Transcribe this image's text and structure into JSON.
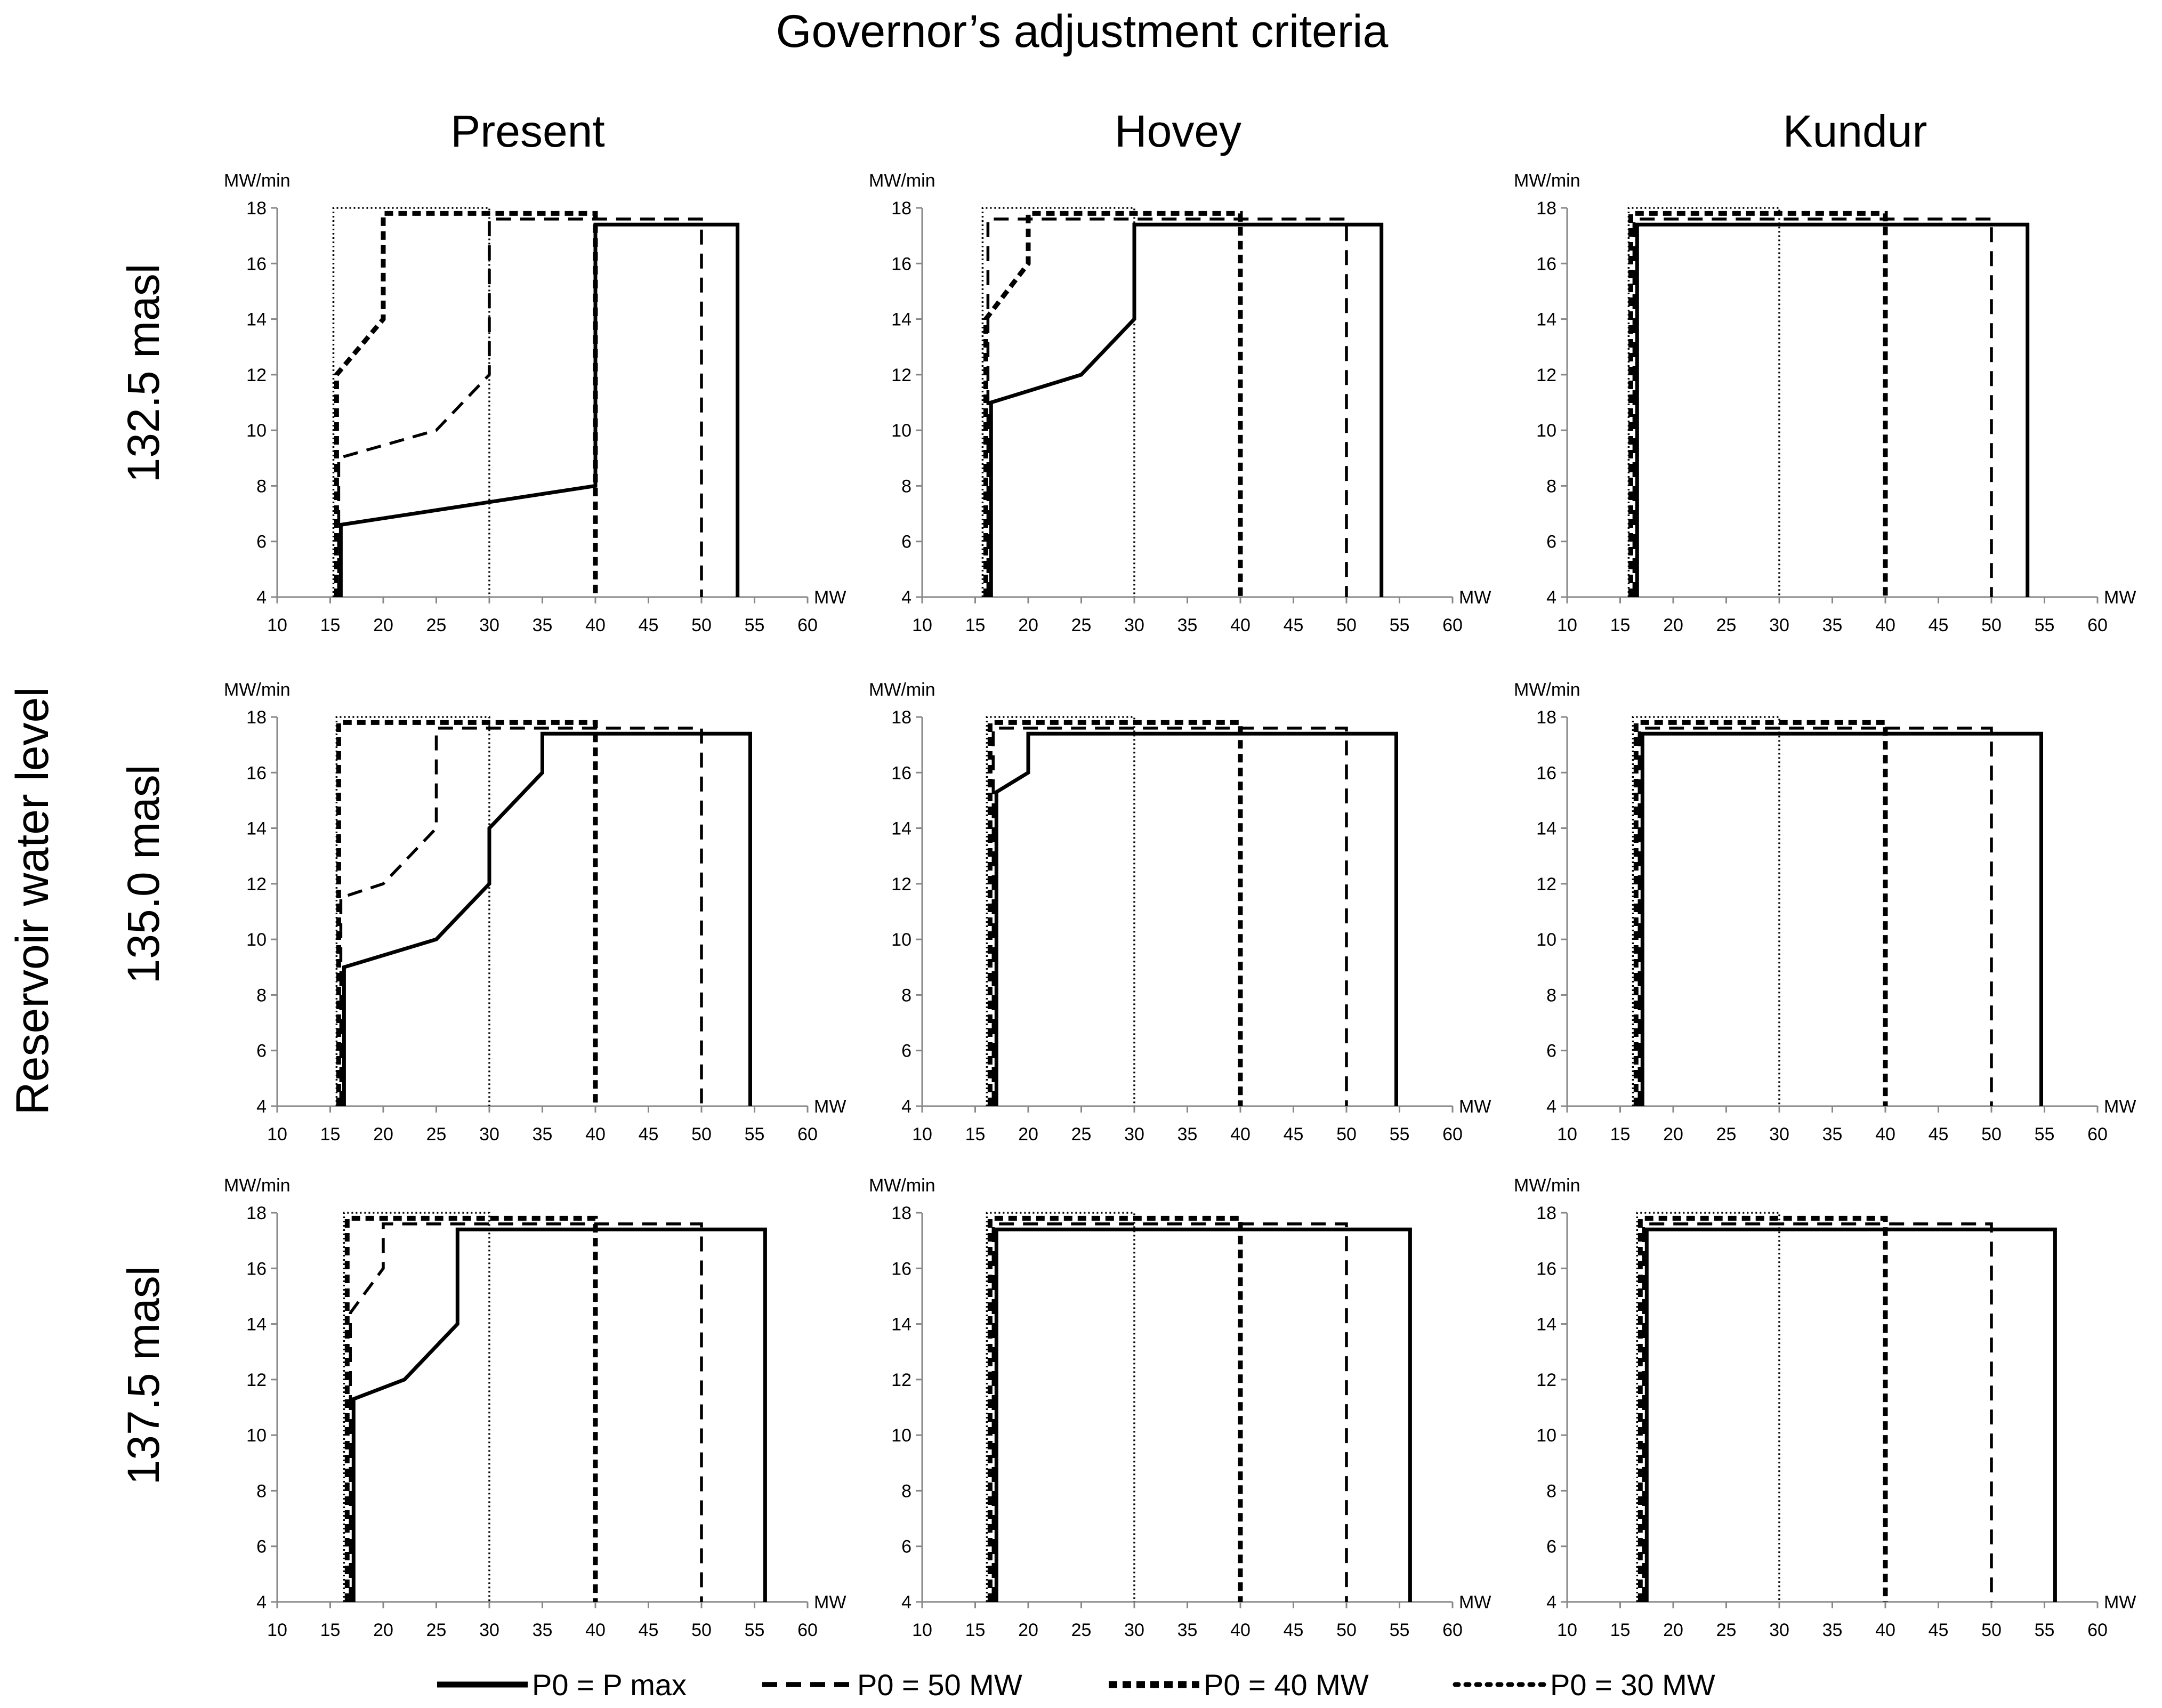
{
  "title": "Governor’s adjustment  criteria",
  "row_axis_title": "Reservoir water level",
  "columns": [
    "Present",
    "Hovey",
    "Kundur"
  ],
  "rows": [
    "132.5 masl",
    "135.0 masl",
    "137.5 masl"
  ],
  "legend": [
    {
      "key": "pmax",
      "label": "P0 = P max"
    },
    {
      "key": "p50",
      "label": "P0 = 50 MW"
    },
    {
      "key": "p40",
      "label": "P0 = 40 MW"
    },
    {
      "key": "p30",
      "label": "P0 = 30 MW"
    }
  ],
  "chart_data": [
    {
      "type": "line",
      "row": "132.5 masl",
      "column": "Present",
      "xlabel": "MW",
      "ylabel": "MW/min",
      "xlim": [
        10,
        60
      ],
      "ylim": [
        4,
        18
      ],
      "x_ticks": [
        10,
        15,
        20,
        25,
        30,
        35,
        40,
        45,
        50,
        55,
        60
      ],
      "y_ticks": [
        4,
        6,
        8,
        10,
        12,
        14,
        16,
        18
      ],
      "series": [
        {
          "name": "P0 = P max",
          "points": [
            [
              16,
              4
            ],
            [
              16,
              6.6
            ],
            [
              40,
              8
            ],
            [
              40,
              17.4
            ],
            [
              53.4,
              17.4
            ],
            [
              53.4,
              4
            ]
          ]
        },
        {
          "name": "P0 = 50 MW",
          "points": [
            [
              15.8,
              4
            ],
            [
              15.8,
              9
            ],
            [
              25,
              10
            ],
            [
              30,
              12
            ],
            [
              30,
              17.6
            ],
            [
              50,
              17.6
            ],
            [
              50,
              4
            ]
          ]
        },
        {
          "name": "P0 = 40 MW",
          "points": [
            [
              15.6,
              4
            ],
            [
              15.6,
              12
            ],
            [
              20,
              14
            ],
            [
              20,
              17.8
            ],
            [
              40,
              17.8
            ],
            [
              40,
              4
            ]
          ]
        },
        {
          "name": "P0 = 30 MW",
          "points": [
            [
              15.3,
              4
            ],
            [
              15.3,
              18
            ],
            [
              30,
              18
            ],
            [
              30,
              4
            ]
          ]
        }
      ]
    },
    {
      "type": "line",
      "row": "132.5 masl",
      "column": "Hovey",
      "xlabel": "MW",
      "ylabel": "MW/min",
      "xlim": [
        10,
        60
      ],
      "ylim": [
        4,
        18
      ],
      "x_ticks": [
        10,
        15,
        20,
        25,
        30,
        35,
        40,
        45,
        50,
        55,
        60
      ],
      "y_ticks": [
        4,
        6,
        8,
        10,
        12,
        14,
        16,
        18
      ],
      "series": [
        {
          "name": "P0 = P max",
          "points": [
            [
              16.5,
              4
            ],
            [
              16.5,
              11
            ],
            [
              25,
              12
            ],
            [
              30,
              14
            ],
            [
              30,
              17.4
            ],
            [
              53.3,
              17.4
            ],
            [
              53.3,
              4
            ]
          ]
        },
        {
          "name": "P0 = 50 MW",
          "points": [
            [
              16.2,
              4
            ],
            [
              16.2,
              17.6
            ],
            [
              50,
              17.6
            ],
            [
              50,
              4
            ]
          ]
        },
        {
          "name": "P0 = 40 MW",
          "points": [
            [
              16,
              4
            ],
            [
              16,
              14
            ],
            [
              20,
              16
            ],
            [
              20,
              17.8
            ],
            [
              40,
              17.8
            ],
            [
              40,
              4
            ]
          ]
        },
        {
          "name": "P0 = 30 MW",
          "points": [
            [
              15.7,
              4
            ],
            [
              15.7,
              18
            ],
            [
              30,
              18
            ],
            [
              30,
              4
            ]
          ]
        }
      ]
    },
    {
      "type": "line",
      "row": "132.5 masl",
      "column": "Kundur",
      "xlabel": "MW",
      "ylabel": "MW/min",
      "xlim": [
        10,
        60
      ],
      "ylim": [
        4,
        18
      ],
      "x_ticks": [
        10,
        15,
        20,
        25,
        30,
        35,
        40,
        45,
        50,
        55,
        60
      ],
      "y_ticks": [
        4,
        6,
        8,
        10,
        12,
        14,
        16,
        18
      ],
      "series": [
        {
          "name": "P0 = P max",
          "points": [
            [
              16.6,
              4
            ],
            [
              16.6,
              17.4
            ],
            [
              53.4,
              17.4
            ],
            [
              53.4,
              4
            ]
          ]
        },
        {
          "name": "P0 = 50 MW",
          "points": [
            [
              16.3,
              4
            ],
            [
              16.3,
              17.6
            ],
            [
              50,
              17.6
            ],
            [
              50,
              4
            ]
          ]
        },
        {
          "name": "P0 = 40 MW",
          "points": [
            [
              16,
              4
            ],
            [
              16,
              17.8
            ],
            [
              40,
              17.8
            ],
            [
              40,
              4
            ]
          ]
        },
        {
          "name": "P0 = 30 MW",
          "points": [
            [
              15.8,
              4
            ],
            [
              15.8,
              18
            ],
            [
              30,
              18
            ],
            [
              30,
              4
            ]
          ]
        }
      ]
    },
    {
      "type": "line",
      "row": "135.0 masl",
      "column": "Present",
      "xlabel": "MW",
      "ylabel": "MW/min",
      "xlim": [
        10,
        60
      ],
      "ylim": [
        4,
        18
      ],
      "x_ticks": [
        10,
        15,
        20,
        25,
        30,
        35,
        40,
        45,
        50,
        55,
        60
      ],
      "y_ticks": [
        4,
        6,
        8,
        10,
        12,
        14,
        16,
        18
      ],
      "series": [
        {
          "name": "P0 = P max",
          "points": [
            [
              16.3,
              4
            ],
            [
              16.3,
              9
            ],
            [
              25,
              10
            ],
            [
              30,
              12
            ],
            [
              30,
              14
            ],
            [
              35,
              16
            ],
            [
              35,
              17.4
            ],
            [
              54.6,
              17.4
            ],
            [
              54.6,
              4
            ]
          ]
        },
        {
          "name": "P0 = 50 MW",
          "points": [
            [
              16,
              4
            ],
            [
              16,
              11.5
            ],
            [
              20,
              12
            ],
            [
              25,
              14
            ],
            [
              25,
              17.6
            ],
            [
              50,
              17.6
            ],
            [
              50,
              4
            ]
          ]
        },
        {
          "name": "P0 = 40 MW",
          "points": [
            [
              15.8,
              4
            ],
            [
              15.8,
              17.8
            ],
            [
              40,
              17.8
            ],
            [
              40,
              4
            ]
          ]
        },
        {
          "name": "P0 = 30 MW",
          "points": [
            [
              15.6,
              4
            ],
            [
              15.6,
              18
            ],
            [
              30,
              18
            ],
            [
              30,
              4
            ]
          ]
        }
      ]
    },
    {
      "type": "line",
      "row": "135.0 masl",
      "column": "Hovey",
      "xlabel": "MW",
      "ylabel": "MW/min",
      "xlim": [
        10,
        60
      ],
      "ylim": [
        4,
        18
      ],
      "x_ticks": [
        10,
        15,
        20,
        25,
        30,
        35,
        40,
        45,
        50,
        55,
        60
      ],
      "y_ticks": [
        4,
        6,
        8,
        10,
        12,
        14,
        16,
        18
      ],
      "series": [
        {
          "name": "P0 = P max",
          "points": [
            [
              17,
              4
            ],
            [
              17,
              15.3
            ],
            [
              20,
              16
            ],
            [
              20,
              17.4
            ],
            [
              54.7,
              17.4
            ],
            [
              54.7,
              4
            ]
          ]
        },
        {
          "name": "P0 = 50 MW",
          "points": [
            [
              16.7,
              4
            ],
            [
              16.7,
              17.6
            ],
            [
              50,
              17.6
            ],
            [
              50,
              4
            ]
          ]
        },
        {
          "name": "P0 = 40 MW",
          "points": [
            [
              16.4,
              4
            ],
            [
              16.4,
              17.8
            ],
            [
              40,
              17.8
            ],
            [
              40,
              4
            ]
          ]
        },
        {
          "name": "P0 = 30 MW",
          "points": [
            [
              16.1,
              4
            ],
            [
              16.1,
              18
            ],
            [
              30,
              18
            ],
            [
              30,
              4
            ]
          ]
        }
      ]
    },
    {
      "type": "line",
      "row": "135.0 masl",
      "column": "Kundur",
      "xlabel": "MW",
      "ylabel": "MW/min",
      "xlim": [
        10,
        60
      ],
      "ylim": [
        4,
        18
      ],
      "x_ticks": [
        10,
        15,
        20,
        25,
        30,
        35,
        40,
        45,
        50,
        55,
        60
      ],
      "y_ticks": [
        4,
        6,
        8,
        10,
        12,
        14,
        16,
        18
      ],
      "series": [
        {
          "name": "P0 = P max",
          "points": [
            [
              17.1,
              4
            ],
            [
              17.1,
              17.4
            ],
            [
              54.7,
              17.4
            ],
            [
              54.7,
              4
            ]
          ]
        },
        {
          "name": "P0 = 50 MW",
          "points": [
            [
              16.8,
              4
            ],
            [
              16.8,
              17.6
            ],
            [
              50,
              17.6
            ],
            [
              50,
              4
            ]
          ]
        },
        {
          "name": "P0 = 40 MW",
          "points": [
            [
              16.5,
              4
            ],
            [
              16.5,
              17.8
            ],
            [
              40,
              17.8
            ],
            [
              40,
              4
            ]
          ]
        },
        {
          "name": "P0 = 30 MW",
          "points": [
            [
              16.2,
              4
            ],
            [
              16.2,
              18
            ],
            [
              30,
              18
            ],
            [
              30,
              4
            ]
          ]
        }
      ]
    },
    {
      "type": "line",
      "row": "137.5 masl",
      "column": "Present",
      "xlabel": "MW",
      "ylabel": "MW/min",
      "xlim": [
        10,
        60
      ],
      "ylim": [
        4,
        18
      ],
      "x_ticks": [
        10,
        15,
        20,
        25,
        30,
        35,
        40,
        45,
        50,
        55,
        60
      ],
      "y_ticks": [
        4,
        6,
        8,
        10,
        12,
        14,
        16,
        18
      ],
      "series": [
        {
          "name": "P0 = P max",
          "points": [
            [
              17.2,
              4
            ],
            [
              17.2,
              11.3
            ],
            [
              22,
              12
            ],
            [
              27,
              14
            ],
            [
              27,
              17.4
            ],
            [
              56,
              17.4
            ],
            [
              56,
              4
            ]
          ]
        },
        {
          "name": "P0 = 50 MW",
          "points": [
            [
              16.9,
              4
            ],
            [
              16.9,
              14.4
            ],
            [
              20,
              16
            ],
            [
              20,
              17.6
            ],
            [
              50,
              17.6
            ],
            [
              50,
              4
            ]
          ]
        },
        {
          "name": "P0 = 40 MW",
          "points": [
            [
              16.6,
              4
            ],
            [
              16.6,
              17.8
            ],
            [
              40,
              17.8
            ],
            [
              40,
              4
            ]
          ]
        },
        {
          "name": "P0 = 30 MW",
          "points": [
            [
              16.3,
              4
            ],
            [
              16.3,
              18
            ],
            [
              30,
              18
            ],
            [
              30,
              4
            ]
          ]
        }
      ]
    },
    {
      "type": "line",
      "row": "137.5 masl",
      "column": "Hovey",
      "xlabel": "MW",
      "ylabel": "MW/min",
      "xlim": [
        10,
        60
      ],
      "ylim": [
        4,
        18
      ],
      "x_ticks": [
        10,
        15,
        20,
        25,
        30,
        35,
        40,
        45,
        50,
        55,
        60
      ],
      "y_ticks": [
        4,
        6,
        8,
        10,
        12,
        14,
        16,
        18
      ],
      "series": [
        {
          "name": "P0 = P max",
          "points": [
            [
              17,
              4
            ],
            [
              17,
              17.4
            ],
            [
              56,
              17.4
            ],
            [
              56,
              4
            ]
          ]
        },
        {
          "name": "P0 = 50 MW",
          "points": [
            [
              16.7,
              4
            ],
            [
              16.7,
              17.6
            ],
            [
              50,
              17.6
            ],
            [
              50,
              4
            ]
          ]
        },
        {
          "name": "P0 = 40 MW",
          "points": [
            [
              16.4,
              4
            ],
            [
              16.4,
              17.8
            ],
            [
              40,
              17.8
            ],
            [
              40,
              4
            ]
          ]
        },
        {
          "name": "P0 = 30 MW",
          "points": [
            [
              16.1,
              4
            ],
            [
              16.1,
              18
            ],
            [
              30,
              18
            ],
            [
              30,
              4
            ]
          ]
        }
      ]
    },
    {
      "type": "line",
      "row": "137.5 masl",
      "column": "Kundur",
      "xlabel": "MW",
      "ylabel": "MW/min",
      "xlim": [
        10,
        60
      ],
      "ylim": [
        4,
        18
      ],
      "x_ticks": [
        10,
        15,
        20,
        25,
        30,
        35,
        40,
        45,
        50,
        55,
        60
      ],
      "y_ticks": [
        4,
        6,
        8,
        10,
        12,
        14,
        16,
        18
      ],
      "series": [
        {
          "name": "P0 = P max",
          "points": [
            [
              17.5,
              4
            ],
            [
              17.5,
              17.4
            ],
            [
              56,
              17.4
            ],
            [
              56,
              4
            ]
          ]
        },
        {
          "name": "P0 = 50 MW",
          "points": [
            [
              17.2,
              4
            ],
            [
              17.2,
              17.6
            ],
            [
              50,
              17.6
            ],
            [
              50,
              4
            ]
          ]
        },
        {
          "name": "P0 = 40 MW",
          "points": [
            [
              16.9,
              4
            ],
            [
              16.9,
              17.8
            ],
            [
              40,
              17.8
            ],
            [
              40,
              4
            ]
          ]
        },
        {
          "name": "P0 = 30 MW",
          "points": [
            [
              16.6,
              4
            ],
            [
              16.6,
              18
            ],
            [
              30,
              18
            ],
            [
              30,
              4
            ]
          ]
        }
      ]
    }
  ]
}
